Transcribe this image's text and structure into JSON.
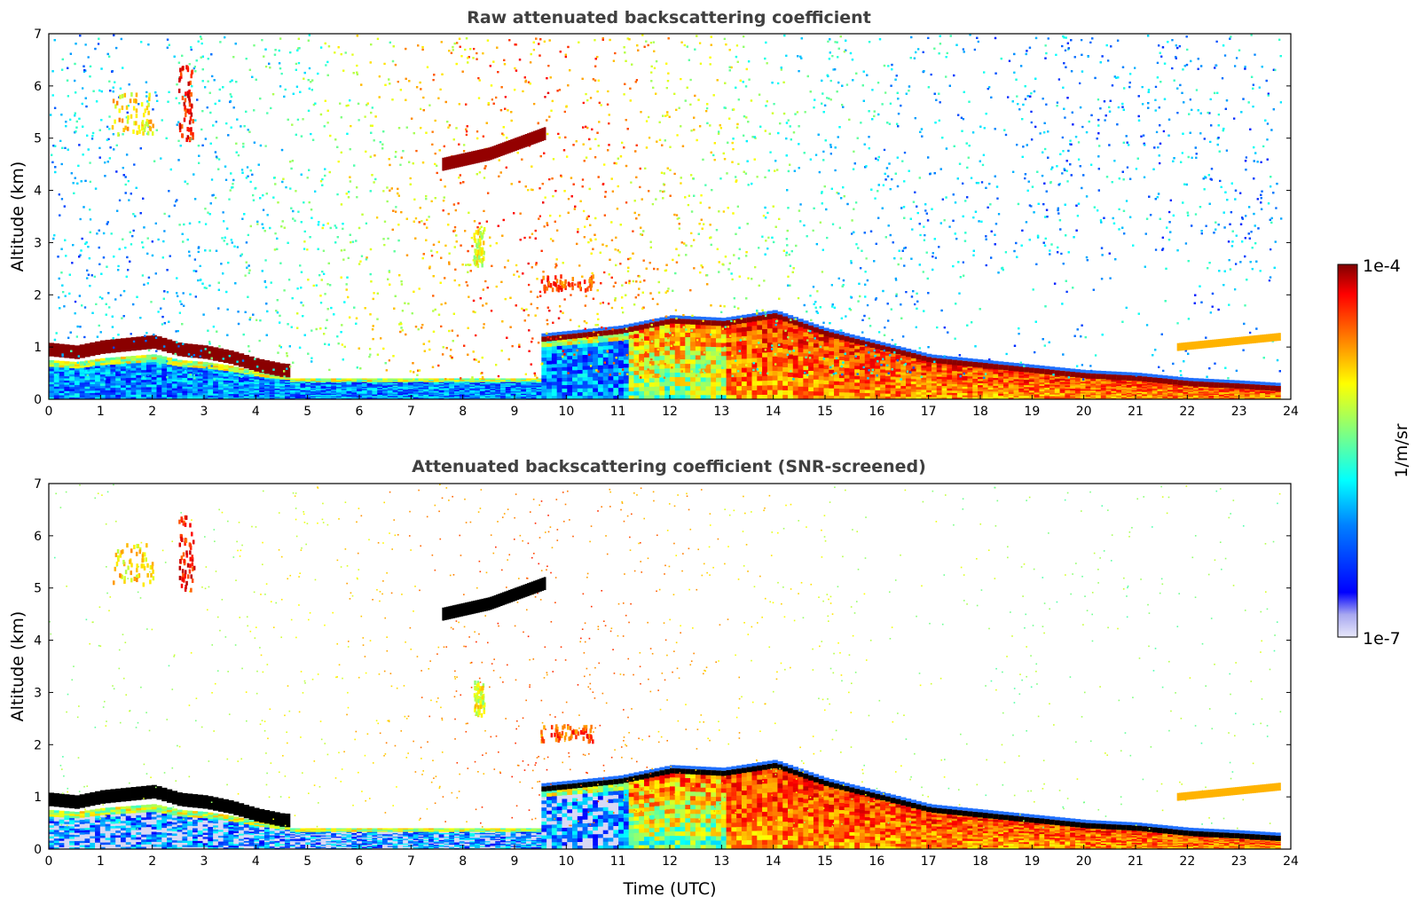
{
  "colors": {
    "jet": [
      "#00008f",
      "#0000ff",
      "#0080ff",
      "#00ffff",
      "#80ff80",
      "#ffff00",
      "#ff8000",
      "#ff0000",
      "#800000"
    ],
    "low_fill": "#d8d8f4",
    "strong_signal": "#000000"
  },
  "chart_data": [
    {
      "type": "heatmap",
      "title": "Raw attenuated backscattering coefficient",
      "xlabel": "",
      "ylabel": "Altitude (km)",
      "xlim": [
        0,
        24
      ],
      "ylim": [
        0,
        7
      ],
      "xticks": [
        "0",
        "1",
        "2",
        "3",
        "4",
        "5",
        "6",
        "7",
        "8",
        "9",
        "10",
        "11",
        "12",
        "13",
        "14",
        "15",
        "16",
        "17",
        "18",
        "19",
        "20",
        "21",
        "22",
        "23",
        "24"
      ],
      "yticks": [
        "0",
        "1",
        "2",
        "3",
        "4",
        "5",
        "6",
        "7"
      ],
      "screened": false,
      "background_noise_color": "#1a3cf0",
      "features": [
        {
          "kind": "cloud_top",
          "x": [
            0.0,
            0.5,
            1.0,
            1.5,
            2.0,
            2.5,
            3.0,
            3.5,
            4.0,
            4.5
          ],
          "y": [
            1.0,
            0.95,
            1.05,
            1.1,
            1.15,
            1.0,
            0.95,
            0.85,
            0.7,
            0.6
          ],
          "intensity": 0.97
        },
        {
          "kind": "cirrus",
          "x": [
            1.2,
            2.0
          ],
          "y": [
            5.1,
            5.9
          ],
          "intensity": 0.7
        },
        {
          "kind": "cirrus",
          "x": [
            2.5,
            2.8
          ],
          "y": [
            5.0,
            6.4
          ],
          "intensity": 0.9
        },
        {
          "kind": "cloud_layer",
          "x": [
            7.6,
            8.5,
            9.6
          ],
          "y": [
            4.5,
            4.7,
            5.1
          ],
          "thickness": 0.25,
          "intensity": 0.98
        },
        {
          "kind": "aerosol_patch",
          "x": [
            8.2,
            8.4
          ],
          "y": [
            2.6,
            3.3
          ],
          "intensity": 0.65
        },
        {
          "kind": "aerosol_patch",
          "x": [
            9.5,
            10.5
          ],
          "y": [
            2.1,
            2.4
          ],
          "intensity": 0.85
        },
        {
          "kind": "boundary_layer",
          "x": [
            9.5,
            10,
            11,
            12,
            13,
            14,
            15,
            16,
            17,
            18,
            19,
            20,
            21,
            22,
            23,
            23.8
          ],
          "y": [
            1.2,
            1.25,
            1.35,
            1.55,
            1.5,
            1.65,
            1.3,
            1.05,
            0.8,
            0.7,
            0.6,
            0.5,
            0.45,
            0.35,
            0.3,
            0.25
          ],
          "intensity": 0.85
        },
        {
          "kind": "elevated_layer",
          "x": [
            21.8,
            23.8
          ],
          "y": [
            1.0,
            1.2
          ],
          "intensity": 0.7
        }
      ]
    },
    {
      "type": "heatmap",
      "title": "Attenuated backscattering coefficient (SNR-screened)",
      "xlabel": "Time (UTC)",
      "ylabel": "Altitude (km)",
      "xlim": [
        0,
        24
      ],
      "ylim": [
        0,
        7
      ],
      "xticks": [
        "0",
        "1",
        "2",
        "3",
        "4",
        "5",
        "6",
        "7",
        "8",
        "9",
        "10",
        "11",
        "12",
        "13",
        "14",
        "15",
        "16",
        "17",
        "18",
        "19",
        "20",
        "21",
        "22",
        "23",
        "24"
      ],
      "yticks": [
        "0",
        "1",
        "2",
        "3",
        "4",
        "5",
        "6",
        "7"
      ],
      "screened": true,
      "background_noise_color": "#ffffff",
      "features": [
        {
          "kind": "cloud_top",
          "x": [
            0.0,
            0.5,
            1.0,
            1.5,
            2.0,
            2.5,
            3.0,
            3.5,
            4.0,
            4.5
          ],
          "y": [
            1.0,
            0.95,
            1.05,
            1.1,
            1.15,
            1.0,
            0.95,
            0.85,
            0.7,
            0.6
          ],
          "intensity": 0.97
        },
        {
          "kind": "cirrus",
          "x": [
            1.2,
            2.0
          ],
          "y": [
            5.1,
            5.9
          ],
          "intensity": 0.7
        },
        {
          "kind": "cirrus",
          "x": [
            2.5,
            2.8
          ],
          "y": [
            5.0,
            6.4
          ],
          "intensity": 0.9
        },
        {
          "kind": "cloud_layer",
          "x": [
            7.6,
            8.5,
            9.6
          ],
          "y": [
            4.5,
            4.7,
            5.1
          ],
          "thickness": 0.25,
          "intensity": 1.0
        },
        {
          "kind": "aerosol_patch",
          "x": [
            8.2,
            8.4
          ],
          "y": [
            2.6,
            3.3
          ],
          "intensity": 0.65
        },
        {
          "kind": "aerosol_patch",
          "x": [
            9.5,
            10.5
          ],
          "y": [
            2.1,
            2.4
          ],
          "intensity": 0.85
        },
        {
          "kind": "boundary_layer",
          "x": [
            9.5,
            10,
            11,
            12,
            13,
            14,
            15,
            16,
            17,
            18,
            19,
            20,
            21,
            22,
            23,
            23.8
          ],
          "y": [
            1.2,
            1.25,
            1.35,
            1.55,
            1.5,
            1.65,
            1.3,
            1.05,
            0.8,
            0.7,
            0.6,
            0.5,
            0.45,
            0.35,
            0.3,
            0.25
          ],
          "intensity": 0.85
        },
        {
          "kind": "elevated_layer",
          "x": [
            21.8,
            23.8
          ],
          "y": [
            1.0,
            1.2
          ],
          "intensity": 0.7
        }
      ]
    }
  ],
  "colorbar": {
    "label": "1/m/sr",
    "max_label": "1e-4",
    "min_label": "1e-7",
    "range": [
      1e-07,
      0.0001
    ],
    "scale": "log",
    "colormap": "jet"
  }
}
